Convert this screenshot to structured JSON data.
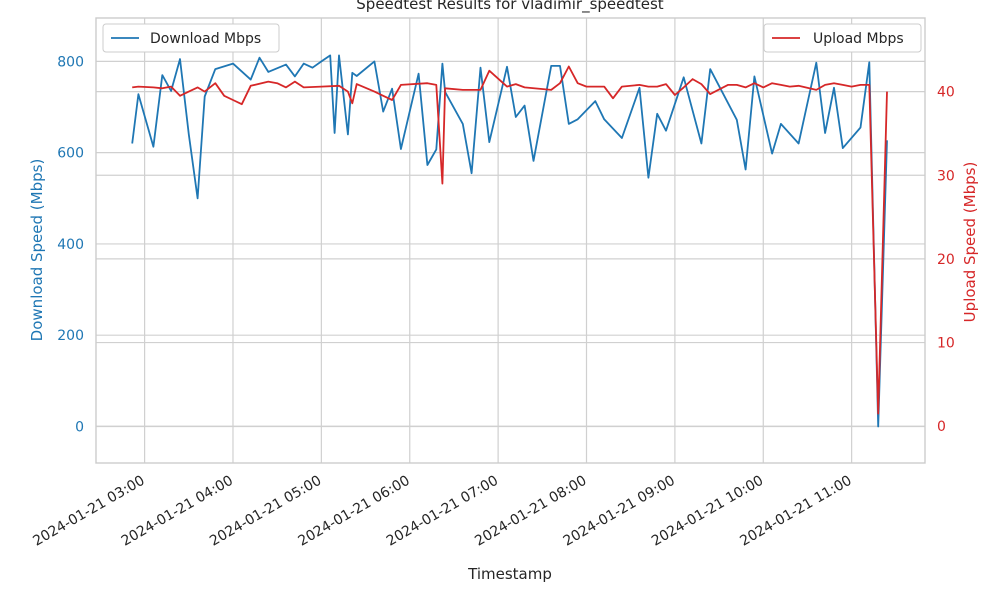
{
  "chart_data": {
    "type": "line",
    "title": "Speedtest Results for vladimir_speedtest",
    "xlabel": "Timestamp",
    "ylabel_left": "Download Speed (Mbps)",
    "ylabel_right": "Upload Speed (Mbps)",
    "x_tick_labels": [
      "2024-01-21 03:00",
      "2024-01-21 04:00",
      "2024-01-21 05:00",
      "2024-01-21 06:00",
      "2024-01-21 07:00",
      "2024-01-21 08:00",
      "2024-01-21 09:00",
      "2024-01-21 10:00",
      "2024-01-21 11:00"
    ],
    "x_tick_hours": [
      3,
      4,
      5,
      6,
      7,
      8,
      9,
      10,
      11
    ],
    "xlim": [
      2.45,
      11.83
    ],
    "ylim_left": [
      -80,
      895
    ],
    "ylim_right": [
      -4.4,
      48.8
    ],
    "yticks_left": [
      0,
      200,
      400,
      600,
      800
    ],
    "yticks_right": [
      0,
      10,
      20,
      30,
      40
    ],
    "grid": true,
    "colors": {
      "download": "#1f77b4",
      "upload": "#d62728",
      "grid": "#d0d0d0",
      "axes": "#cccccc"
    },
    "legend_left": {
      "position": "top-left",
      "label": "Download Mbps"
    },
    "legend_right": {
      "position": "top-right",
      "label": "Upload Mbps"
    },
    "series": [
      {
        "name": "Download Mbps",
        "axis": "left",
        "x": [
          2.86,
          2.93,
          3.1,
          3.2,
          3.3,
          3.4,
          3.5,
          3.6,
          3.68,
          3.8,
          4.0,
          4.2,
          4.3,
          4.4,
          4.6,
          4.7,
          4.8,
          4.9,
          5.0,
          5.1,
          5.15,
          5.2,
          5.3,
          5.35,
          5.4,
          5.6,
          5.7,
          5.8,
          5.9,
          6.1,
          6.2,
          6.3,
          6.37,
          6.4,
          6.6,
          6.7,
          6.8,
          6.9,
          7.1,
          7.2,
          7.3,
          7.4,
          7.6,
          7.7,
          7.8,
          7.9,
          8.1,
          8.2,
          8.4,
          8.6,
          8.7,
          8.8,
          8.9,
          9.1,
          9.3,
          9.4,
          9.7,
          9.8,
          9.9,
          10.1,
          10.2,
          10.4,
          10.6,
          10.7,
          10.8,
          10.9,
          11.1,
          11.2,
          11.3,
          11.4
        ],
        "values": [
          620,
          728,
          613,
          770,
          735,
          805,
          640,
          500,
          723,
          783,
          795,
          760,
          808,
          777,
          793,
          767,
          795,
          786,
          800,
          813,
          643,
          813,
          640,
          775,
          768,
          800,
          690,
          740,
          608,
          773,
          573,
          607,
          795,
          733,
          663,
          555,
          786,
          623,
          788,
          678,
          703,
          582,
          790,
          790,
          663,
          673,
          713,
          673,
          632,
          742,
          545,
          685,
          648,
          765,
          620,
          783,
          672,
          563,
          767,
          598,
          663,
          620,
          797,
          643,
          742,
          610,
          655,
          798,
          0,
          627
        ]
      },
      {
        "name": "Upload Mbps",
        "axis": "right",
        "x": [
          2.86,
          2.93,
          3.1,
          3.2,
          3.3,
          3.4,
          3.5,
          3.6,
          3.68,
          3.8,
          3.9,
          4.0,
          4.1,
          4.2,
          4.4,
          4.5,
          4.6,
          4.7,
          4.8,
          5.0,
          5.2,
          5.3,
          5.35,
          5.4,
          5.6,
          5.7,
          5.8,
          5.9,
          6.2,
          6.3,
          6.37,
          6.4,
          6.6,
          6.8,
          6.9,
          7.1,
          7.2,
          7.3,
          7.6,
          7.7,
          7.8,
          7.9,
          8.0,
          8.1,
          8.2,
          8.3,
          8.4,
          8.6,
          8.7,
          8.8,
          8.9,
          9.0,
          9.1,
          9.2,
          9.3,
          9.4,
          9.6,
          9.7,
          9.8,
          9.9,
          10.0,
          10.1,
          10.2,
          10.3,
          10.4,
          10.6,
          10.7,
          10.8,
          10.9,
          11.0,
          11.1,
          11.2,
          11.3,
          11.4
        ],
        "values": [
          40.5,
          40.6,
          40.5,
          40.4,
          40.6,
          39.5,
          40.0,
          40.5,
          40.0,
          41.0,
          39.5,
          39.0,
          38.5,
          40.7,
          41.2,
          41.0,
          40.5,
          41.2,
          40.5,
          40.6,
          40.7,
          40.0,
          38.6,
          40.9,
          40.0,
          39.5,
          39.0,
          40.8,
          41.0,
          40.8,
          29.0,
          40.4,
          40.2,
          40.2,
          42.5,
          40.6,
          40.9,
          40.5,
          40.2,
          41.0,
          43.0,
          41.0,
          40.6,
          40.6,
          40.6,
          39.2,
          40.6,
          40.8,
          40.6,
          40.6,
          40.9,
          39.6,
          40.5,
          41.5,
          40.9,
          39.7,
          40.8,
          40.8,
          40.5,
          41.0,
          40.5,
          41.0,
          40.8,
          40.6,
          40.7,
          40.2,
          40.8,
          41.0,
          40.8,
          40.6,
          40.8,
          40.8,
          1.5,
          40.0
        ]
      }
    ]
  }
}
